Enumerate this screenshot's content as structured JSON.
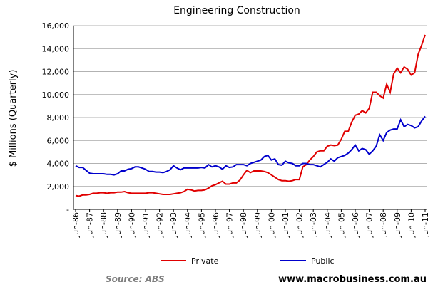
{
  "chart_data": {
    "type": "line",
    "title": "Engineering Construction",
    "y_label": "$ Millions (Quarterly)",
    "categories": [
      "Jun-86",
      null,
      null,
      null,
      "Jun-87",
      null,
      null,
      null,
      "Jun-88",
      null,
      null,
      null,
      "Jun-89",
      null,
      null,
      null,
      "Jun-90",
      null,
      null,
      null,
      "Jun-91",
      null,
      null,
      null,
      "Jun-92",
      null,
      null,
      null,
      "Jun-93",
      null,
      null,
      null,
      "Jun-94",
      null,
      null,
      null,
      "Jun-95",
      null,
      null,
      null,
      "Jun-96",
      null,
      null,
      null,
      "Jun-97",
      null,
      null,
      null,
      "Jun-98",
      null,
      null,
      null,
      "Jun-99",
      null,
      null,
      null,
      "Jun-00",
      null,
      null,
      null,
      "Jun-01",
      null,
      null,
      null,
      "Jun-02",
      null,
      null,
      null,
      "Jun-03",
      null,
      null,
      null,
      "Jun-04",
      null,
      null,
      null,
      "Jun-05",
      null,
      null,
      null,
      "Jun-06",
      null,
      null,
      null,
      "Jun-07",
      null,
      null,
      null,
      "Jun-08",
      null,
      null,
      null,
      "Jun-09",
      null,
      null,
      null,
      "Jun-10",
      null,
      null,
      null,
      "Jun-11"
    ],
    "series": [
      {
        "name": "Private",
        "color": "#e00000",
        "values": [
          1200,
          1150,
          1250,
          1250,
          1300,
          1400,
          1400,
          1450,
          1450,
          1400,
          1450,
          1450,
          1500,
          1500,
          1550,
          1450,
          1400,
          1400,
          1400,
          1400,
          1400,
          1450,
          1450,
          1400,
          1350,
          1300,
          1300,
          1300,
          1350,
          1400,
          1450,
          1550,
          1750,
          1700,
          1600,
          1650,
          1650,
          1700,
          1850,
          2050,
          2150,
          2300,
          2450,
          2200,
          2200,
          2300,
          2300,
          2550,
          3000,
          3400,
          3200,
          3350,
          3350,
          3350,
          3300,
          3200,
          3000,
          2800,
          2600,
          2500,
          2500,
          2450,
          2500,
          2600,
          2600,
          3700,
          3900,
          4300,
          4600,
          5000,
          5100,
          5100,
          5500,
          5600,
          5550,
          5600,
          6100,
          6800,
          6800,
          7600,
          8200,
          8300,
          8600,
          8400,
          8800,
          10200,
          10200,
          9900,
          9700,
          10900,
          10200,
          11800,
          12300,
          11900,
          12400,
          12200,
          11700,
          11900,
          13500,
          14300,
          15200
        ]
      },
      {
        "name": "Public",
        "color": "#0000cc",
        "values": [
          3800,
          3650,
          3650,
          3400,
          3150,
          3100,
          3100,
          3100,
          3100,
          3050,
          3050,
          3000,
          3100,
          3350,
          3350,
          3500,
          3550,
          3700,
          3700,
          3600,
          3500,
          3300,
          3300,
          3250,
          3250,
          3200,
          3300,
          3450,
          3800,
          3600,
          3450,
          3600,
          3600,
          3600,
          3600,
          3600,
          3650,
          3600,
          3900,
          3700,
          3800,
          3700,
          3500,
          3800,
          3650,
          3700,
          3900,
          3900,
          3900,
          3800,
          4000,
          4100,
          4200,
          4300,
          4600,
          4700,
          4300,
          4400,
          3900,
          3850,
          4200,
          4050,
          4000,
          3800,
          3800,
          4000,
          4000,
          3900,
          3900,
          3800,
          3700,
          3900,
          4100,
          4400,
          4200,
          4500,
          4600,
          4700,
          4900,
          5200,
          5600,
          5100,
          5300,
          5200,
          4800,
          5100,
          5500,
          6500,
          6000,
          6700,
          6900,
          7000,
          7000,
          7800,
          7200,
          7400,
          7300,
          7100,
          7200,
          7700,
          8100
        ]
      }
    ],
    "ylim": [
      0,
      16000
    ],
    "yticks": [
      {
        "value": 0,
        "label": "-"
      },
      {
        "value": 2000,
        "label": "2,000"
      },
      {
        "value": 4000,
        "label": "4,000"
      },
      {
        "value": 6000,
        "label": "6,000"
      },
      {
        "value": 8000,
        "label": "8,000"
      },
      {
        "value": 10000,
        "label": "10,000"
      },
      {
        "value": 12000,
        "label": "12,000"
      },
      {
        "value": 14000,
        "label": "14,000"
      },
      {
        "value": 16000,
        "label": "16,000"
      }
    ],
    "grid": true,
    "legend": "bottom",
    "source": "Source: ABS",
    "website": "www.macrobusiness.com.au"
  }
}
